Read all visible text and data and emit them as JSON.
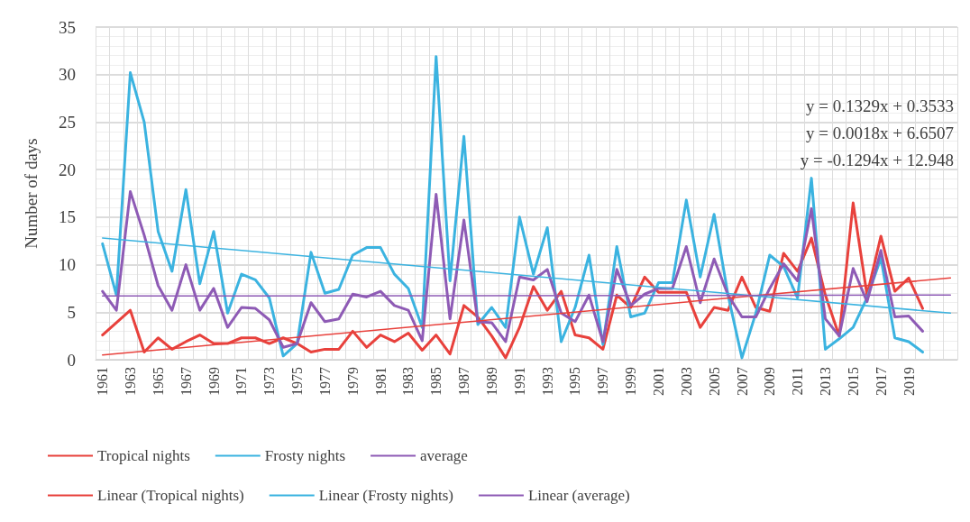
{
  "chart_data": {
    "type": "line",
    "ylabel": "Number of days",
    "categories": [
      "1961",
      null,
      "1963",
      null,
      "1965",
      null,
      "1967",
      null,
      "1969",
      null,
      "1971",
      null,
      "1973",
      null,
      "1975",
      null,
      "1977",
      null,
      "1979",
      null,
      "1981",
      null,
      "1983",
      null,
      "1985",
      null,
      "1987",
      null,
      "1989",
      null,
      "1991",
      null,
      "1993",
      null,
      "1995",
      null,
      "1997",
      null,
      "1999",
      null,
      "2001",
      null,
      "2003",
      null,
      "2005",
      null,
      "2007",
      null,
      "2009",
      null,
      "2011",
      null,
      "2013",
      null,
      "2015",
      null,
      "2017",
      null,
      "2019",
      null,
      null,
      null
    ],
    "series": [
      {
        "name": "Tropical nights",
        "color": "#e8413c",
        "values": [
          2.6,
          3.9,
          5.2,
          0.8,
          2.3,
          1.1,
          1.9,
          2.6,
          1.7,
          1.7,
          2.3,
          2.3,
          1.7,
          2.3,
          1.7,
          0.8,
          1.1,
          1.1,
          3.0,
          1.3,
          2.6,
          1.9,
          2.8,
          1.0,
          2.6,
          0.6,
          5.7,
          4.5,
          2.5,
          0.2,
          3.4,
          7.7,
          5.2,
          7.2,
          2.6,
          2.3,
          1.1,
          6.8,
          5.5,
          8.7,
          7.1,
          7.1,
          7.1,
          3.4,
          5.5,
          5.2,
          8.7,
          5.5,
          5.1,
          11.2,
          9.3,
          12.8,
          6.8,
          2.5,
          16.5,
          6.8,
          13,
          7.2,
          8.6,
          5.4,
          null,
          null
        ]
      },
      {
        "name": "Frosty nights",
        "color": "#3bb3e0",
        "values": [
          12.2,
          6.8,
          30.2,
          25,
          13.5,
          9.3,
          17.9,
          8,
          13.5,
          4.9,
          9,
          8.4,
          6.5,
          0.4,
          1.7,
          11.3,
          7,
          7.4,
          11,
          11.8,
          11.8,
          9,
          7.5,
          3.4,
          31.9,
          8.3,
          23.5,
          3.7,
          5.5,
          3.4,
          15,
          9,
          13.9,
          1.9,
          5.5,
          11,
          1.6,
          11.9,
          4.5,
          4.9,
          8.1,
          8.1,
          16.8,
          8.7,
          15.3,
          6.8,
          0.2,
          4.9,
          11,
          9.8,
          6.5,
          19.1,
          1.1,
          2.2,
          3.4,
          6.5,
          10.7,
          2.3,
          1.9,
          0.8,
          null,
          null
        ]
      },
      {
        "name": "average",
        "color": "#8e5bb5",
        "values": [
          7.2,
          5.2,
          17.7,
          13.1,
          7.8,
          5.2,
          10,
          5.2,
          7.5,
          3.4,
          5.5,
          5.4,
          4.2,
          1.3,
          1.7,
          6,
          4,
          4.3,
          6.9,
          6.6,
          7.2,
          5.7,
          5.2,
          2,
          17.4,
          4.3,
          14.7,
          4,
          3.9,
          1.9,
          8.7,
          8.4,
          9.5,
          4.9,
          4,
          6.8,
          1.9,
          9.5,
          5.7,
          6.9,
          7.5,
          7.5,
          11.9,
          6,
          10.6,
          6.8,
          4.5,
          4.5,
          7.5,
          10.1,
          8.3,
          15.9,
          4.3,
          2.5,
          9.6,
          6.1,
          11.5,
          4.5,
          4.6,
          3.0,
          null,
          null
        ]
      },
      {
        "name": "Linear (Tropical nights)",
        "color": "#e8413c",
        "values": [
          0.5,
          null,
          null,
          null,
          null,
          null,
          null,
          null,
          null,
          null,
          null,
          null,
          null,
          null,
          null,
          null,
          null,
          null,
          null,
          null,
          null,
          null,
          null,
          null,
          null,
          null,
          null,
          null,
          null,
          null,
          null,
          null,
          null,
          null,
          null,
          null,
          null,
          null,
          null,
          null,
          null,
          null,
          null,
          null,
          null,
          null,
          null,
          null,
          null,
          null,
          null,
          null,
          null,
          null,
          null,
          null,
          null,
          null,
          null,
          null,
          null,
          8.6
        ]
      },
      {
        "name": "Linear (Frosty nights)",
        "color": "#3bb3e0",
        "values": [
          12.8,
          null,
          null,
          null,
          null,
          null,
          null,
          null,
          null,
          null,
          null,
          null,
          null,
          null,
          null,
          null,
          null,
          null,
          null,
          null,
          null,
          null,
          null,
          null,
          null,
          null,
          null,
          null,
          null,
          null,
          null,
          null,
          null,
          null,
          null,
          null,
          null,
          null,
          null,
          null,
          null,
          null,
          null,
          null,
          null,
          null,
          null,
          null,
          null,
          null,
          null,
          null,
          null,
          null,
          null,
          null,
          null,
          null,
          null,
          null,
          null,
          4.9
        ]
      },
      {
        "name": "Linear (average)",
        "color": "#8e5bb5",
        "values": [
          6.7,
          null,
          null,
          null,
          null,
          null,
          null,
          null,
          null,
          null,
          null,
          null,
          null,
          null,
          null,
          null,
          null,
          null,
          null,
          null,
          null,
          null,
          null,
          null,
          null,
          null,
          null,
          null,
          null,
          null,
          null,
          null,
          null,
          null,
          null,
          null,
          null,
          null,
          null,
          null,
          null,
          null,
          null,
          null,
          null,
          null,
          null,
          null,
          null,
          null,
          null,
          null,
          null,
          null,
          null,
          null,
          null,
          null,
          null,
          null,
          null,
          6.8
        ]
      }
    ],
    "ylim": [
      0,
      35
    ],
    "yticks": [
      0,
      5,
      10,
      15,
      20,
      25,
      30,
      35
    ],
    "grid": true,
    "legend": "bottom",
    "marker": "none",
    "line_style": "solid",
    "annotations": [
      "y = 0.1329x + 0.3533",
      "y = 0.0018x + 6.6507",
      "y = -0.1294x + 12.948"
    ]
  }
}
